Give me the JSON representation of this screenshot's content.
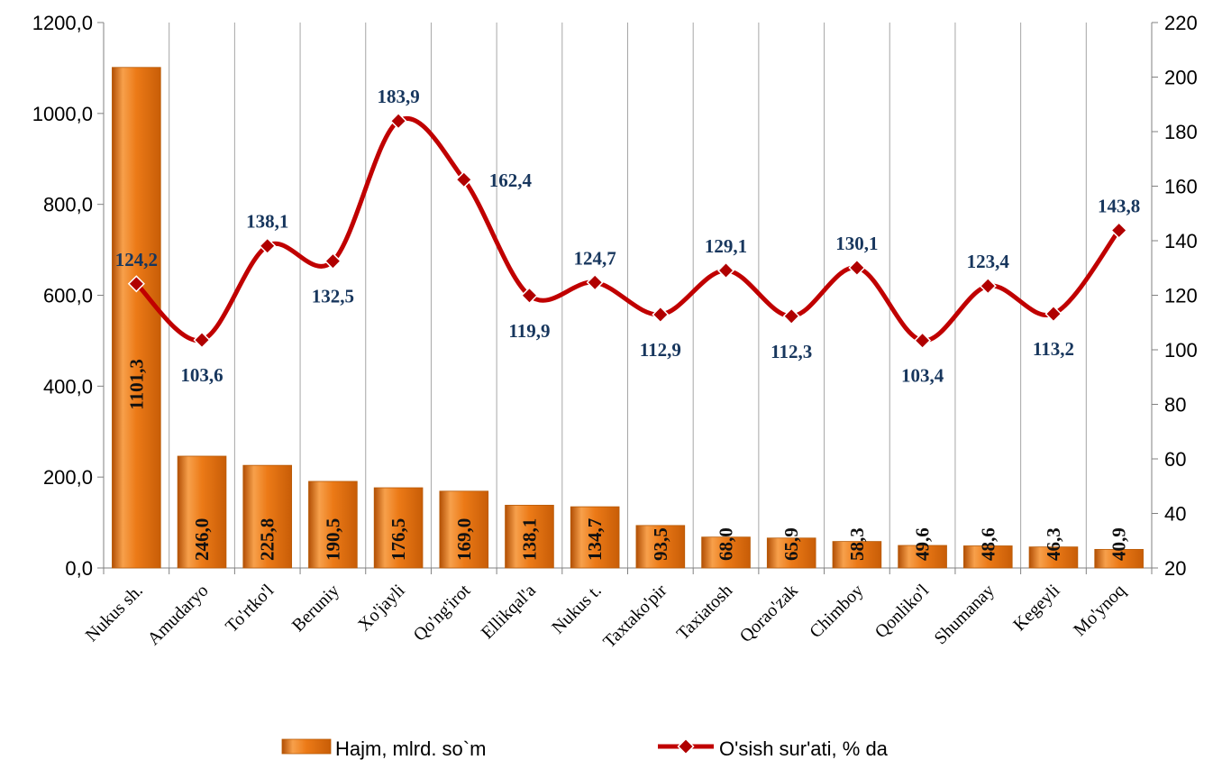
{
  "chart_data": {
    "type": "bar",
    "categories": [
      "Nukus sh.",
      "Amudaryo",
      "To'rtko'l",
      "Beruniy",
      "Xo'jayli",
      "Qo'ng'irot",
      "Ellikqal'a",
      "Nukus t.",
      "Taxtako'pir",
      "Taxiatosh",
      "Qorao'zak",
      "Chimboy",
      "Qonliko'l",
      "Shumanay",
      "Kegeyli",
      "Mo'ynoq"
    ],
    "series": [
      {
        "name": "Hajm, mlrd. so`m",
        "type": "bar",
        "axis": "left",
        "color": "#e46c0a",
        "values": [
          1101.3,
          246.0,
          225.8,
          190.5,
          176.5,
          169.0,
          138.1,
          134.7,
          93.5,
          68.0,
          65.9,
          58.3,
          49.6,
          48.6,
          46.3,
          40.9
        ],
        "labels": [
          "1101,3",
          "246,0",
          "225,8",
          "190,5",
          "176,5",
          "169,0",
          "138,1",
          "134,7",
          "93,5",
          "68,0",
          "65,9",
          "58,3",
          "49,6",
          "48,6",
          "46,3",
          "40,9"
        ]
      },
      {
        "name": "O'sish sur'ati, % da",
        "type": "line",
        "axis": "right",
        "color": "#c00000",
        "values": [
          124.2,
          103.6,
          138.1,
          132.5,
          183.9,
          162.4,
          119.9,
          124.7,
          112.9,
          129.1,
          112.3,
          130.1,
          103.4,
          123.4,
          113.2,
          143.8
        ],
        "labels": [
          "124,2",
          "103,6",
          "138,1",
          "132,5",
          "183,9",
          "162,4",
          "119,9",
          "124,7",
          "112,9",
          "129,1",
          "112,3",
          "130,1",
          "103,4",
          "123,4",
          "113,2",
          "143,8"
        ]
      }
    ],
    "y_left": {
      "lim": [
        0,
        1200
      ],
      "ticks": [
        "0,0",
        "200,0",
        "400,0",
        "600,0",
        "800,0",
        "1000,0",
        "1200,0"
      ]
    },
    "y_right": {
      "lim": [
        20,
        220
      ],
      "ticks": [
        "20",
        "40",
        "60",
        "80",
        "100",
        "120",
        "140",
        "160",
        "180",
        "200",
        "220"
      ]
    },
    "grid": "vertical",
    "legend_position": "bottom"
  }
}
